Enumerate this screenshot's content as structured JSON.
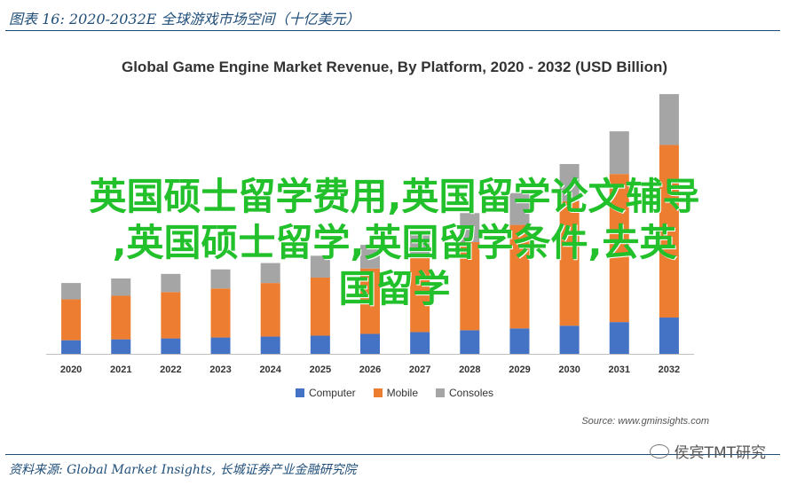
{
  "figure": {
    "title": "图表 16:  2020-2032E 全球游戏市场空间（十亿美元）",
    "footer": "资料来源: Global Market Insights, 长城证券产业金融研究院"
  },
  "watermark": "侯宾TMT研究",
  "overlay_text": {
    "line1": "英国硕士留学费用,英国留学论文辅导",
    "line2": ",英国硕士留学,英国留学条件,去英",
    "line3": "国留学",
    "color": "#22c02a"
  },
  "chart_data": {
    "type": "bar",
    "stacked": true,
    "title": "Global Game Engine Market Revenue, By Platform, 2020 - 2032 (USD Billion)",
    "source": "Source: www.gminsights.com",
    "categories": [
      "2020",
      "2021",
      "2022",
      "2023",
      "2024",
      "2025",
      "2026",
      "2027",
      "2028",
      "2029",
      "2030",
      "2031",
      "2032"
    ],
    "series": [
      {
        "name": "Computer",
        "color": "#4472c4",
        "values": [
          1.5,
          1.6,
          1.7,
          1.8,
          1.9,
          2.0,
          2.2,
          2.4,
          2.6,
          2.8,
          3.1,
          3.5,
          4.0
        ]
      },
      {
        "name": "Mobile",
        "color": "#ed7d31",
        "values": [
          4.5,
          4.8,
          5.1,
          5.4,
          5.9,
          6.4,
          7.2,
          8.3,
          9.7,
          11.4,
          13.7,
          16.3,
          19.0
        ]
      },
      {
        "name": "Consoles",
        "color": "#a5a5a5",
        "values": [
          1.8,
          1.9,
          2.0,
          2.1,
          2.2,
          2.4,
          2.6,
          2.8,
          3.2,
          3.5,
          4.1,
          4.7,
          5.6
        ]
      }
    ],
    "ylim": [
      0,
      29
    ],
    "grid": false,
    "legend_position": "bottom"
  }
}
